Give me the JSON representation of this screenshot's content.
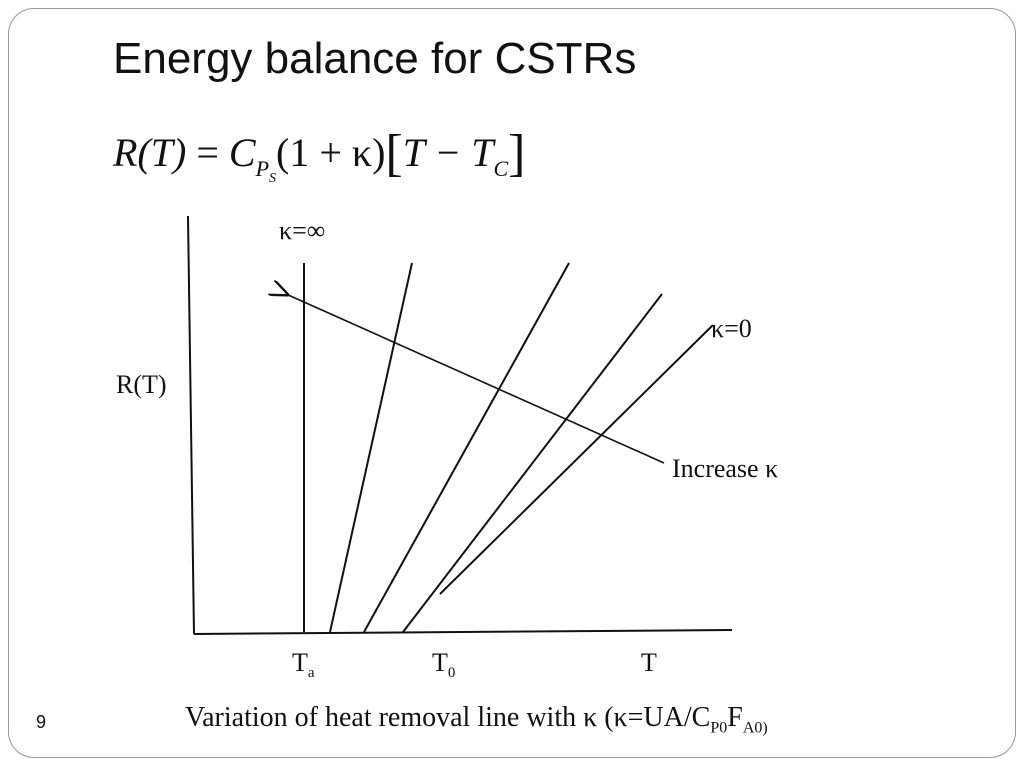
{
  "slide": {
    "title": "Energy balance for CSTRs",
    "page_number": "9"
  },
  "equation": {
    "lhs": "R(T)",
    "eq": " = ",
    "C": "C",
    "P": "P",
    "S": "S",
    "factor": "(1 + κ)",
    "bracket_open": "[",
    "T": "T − T",
    "Tc_sub": "C",
    "bracket_close": "]"
  },
  "diagram": {
    "y_axis_label": "R(T)",
    "label_kappa_inf": "κ=∞",
    "label_kappa_zero": "κ=0",
    "arrow_label": "Increase κ",
    "tick_Ta_main": "T",
    "tick_Ta_sub": "a",
    "tick_T0_main": "T",
    "tick_T0_sub": "0",
    "tick_T": "T",
    "line_color": "#111111"
  },
  "caption": {
    "text_main": "Variation of heat removal line with κ (κ=UA/C",
    "sub1": "P0",
    "mid": "F",
    "sub2": "A0)"
  }
}
